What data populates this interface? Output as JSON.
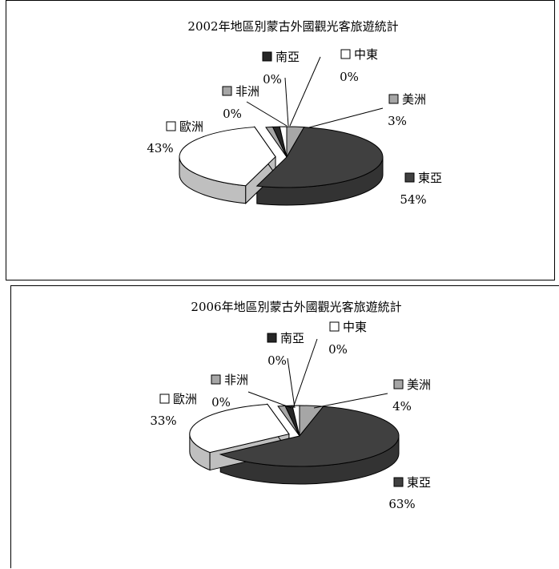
{
  "chart_data": [
    {
      "type": "pie",
      "title": "2002年地區別蒙古外國觀光客旅遊統計",
      "slices": [
        {
          "name": "美洲",
          "value": 3,
          "label": "3%",
          "color": "#a6a6a6"
        },
        {
          "name": "東亞",
          "value": 54,
          "label": "54%",
          "color": "#404040"
        },
        {
          "name": "歐洲",
          "value": 43,
          "label": "43%",
          "color": "#ffffff"
        },
        {
          "name": "非洲",
          "value": 0,
          "label": "0%",
          "color": "#a6a6a6"
        },
        {
          "name": "南亞",
          "value": 0,
          "label": "0%",
          "color": "#262626"
        },
        {
          "name": "中東",
          "value": 0,
          "label": "0%",
          "color": "#ffffff"
        }
      ]
    },
    {
      "type": "pie",
      "title": "2006年地區別蒙古外國觀光客旅遊統計",
      "slices": [
        {
          "name": "美洲",
          "value": 4,
          "label": "4%",
          "color": "#a6a6a6"
        },
        {
          "name": "東亞",
          "value": 63,
          "label": "63%",
          "color": "#404040"
        },
        {
          "name": "歐洲",
          "value": 33,
          "label": "33%",
          "color": "#ffffff"
        },
        {
          "name": "非洲",
          "value": 0,
          "label": "0%",
          "color": "#a6a6a6"
        },
        {
          "name": "南亞",
          "value": 0,
          "label": "0%",
          "color": "#262626"
        },
        {
          "name": "中東",
          "value": 0,
          "label": "0%",
          "color": "#ffffff"
        }
      ]
    }
  ]
}
